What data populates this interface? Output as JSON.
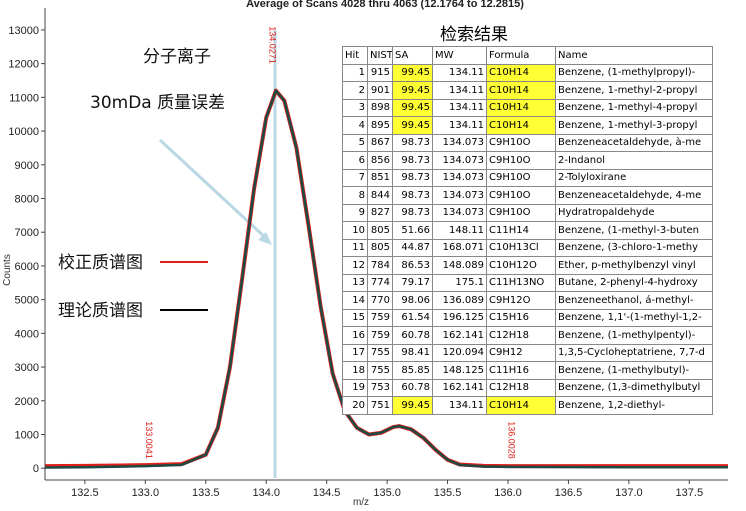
{
  "chart_data": {
    "type": "line",
    "title": "Average of Scans 4028 thru 4063 (12.1764 to 12.2815)",
    "x_label": "m/z",
    "y_label": "Counts",
    "xlim": [
      132.17,
      137.82
    ],
    "ylim": [
      -350,
      13650
    ],
    "xticks": [
      132.5,
      {
        "value": 133,
        "label": "133.0"
      },
      133.5,
      {
        "value": 134,
        "label": "134.0"
      },
      134.5,
      {
        "value": 135,
        "label": "135.0"
      },
      135.5,
      {
        "value": 136,
        "label": "136.0"
      },
      136.5,
      {
        "value": 137,
        "label": "137.0"
      },
      137.5
    ],
    "yticks": [
      0,
      1000,
      2000,
      3000,
      4000,
      5000,
      6000,
      7000,
      8000,
      9000,
      10000,
      11000,
      12000,
      13000
    ],
    "series": [
      {
        "name": "校正质谱图",
        "color": "#e0201b",
        "x": [
          132.17,
          132.5,
          133.0,
          133.3,
          133.5,
          133.6,
          133.7,
          133.8,
          133.9,
          134.0,
          134.08,
          134.15,
          134.25,
          134.35,
          134.45,
          134.55,
          134.65,
          134.75,
          134.85,
          134.95,
          135.05,
          135.1,
          135.2,
          135.3,
          135.4,
          135.5,
          135.6,
          135.8,
          136.0,
          137.0,
          137.82
        ],
        "values": [
          60,
          70,
          90,
          120,
          400,
          1200,
          3000,
          5600,
          8300,
          10400,
          11200,
          10900,
          9500,
          7200,
          4800,
          2800,
          1700,
          1200,
          1000,
          1050,
          1220,
          1250,
          1150,
          900,
          550,
          250,
          110,
          70,
          60,
          60,
          60
        ]
      },
      {
        "name": "理论质谱图",
        "color": "#1c4a44",
        "x": [
          132.17,
          132.5,
          133.0,
          133.3,
          133.5,
          133.6,
          133.7,
          133.8,
          133.9,
          134.0,
          134.08,
          134.15,
          134.25,
          134.35,
          134.45,
          134.55,
          134.65,
          134.75,
          134.85,
          134.95,
          135.05,
          135.1,
          135.2,
          135.3,
          135.4,
          135.5,
          135.6,
          135.8,
          136.0,
          137.0,
          137.82
        ],
        "values": [
          20,
          30,
          60,
          100,
          400,
          1200,
          3000,
          5600,
          8300,
          10400,
          11200,
          10900,
          9500,
          7200,
          4800,
          2800,
          1700,
          1200,
          1000,
          1050,
          1220,
          1250,
          1150,
          900,
          550,
          250,
          100,
          50,
          40,
          30,
          30
        ]
      }
    ],
    "peak_labels": [
      133.0041,
      134.0271,
      136.0028
    ],
    "peak_label_color": "#e0201b",
    "annotations": [
      "分子离子",
      "30mDa 质量误差"
    ]
  },
  "table": {
    "title": "检索结果",
    "header": [
      "Hit",
      "NIST",
      "SA",
      "MW",
      "Formula",
      "Name"
    ],
    "highlight_color": "#ffff33",
    "highlighted_hits": [
      1,
      2,
      3,
      4,
      20
    ],
    "rows": [
      [
        "1",
        "915",
        "99.45",
        "134.11",
        "C10H14",
        "Benzene, (1-methylpropyl)-"
      ],
      [
        "2",
        "901",
        "99.45",
        "134.11",
        "C10H14",
        "Benzene, 1-methyl-2-propyl"
      ],
      [
        "3",
        "898",
        "99.45",
        "134.11",
        "C10H14",
        "Benzene, 1-methyl-4-propyl"
      ],
      [
        "4",
        "895",
        "99.45",
        "134.11",
        "C10H14",
        "Benzene, 1-methyl-3-propyl"
      ],
      [
        "5",
        "867",
        "98.73",
        "134.073",
        "C9H10O",
        "Benzeneacetaldehyde, à-me"
      ],
      [
        "6",
        "856",
        "98.73",
        "134.073",
        "C9H10O",
        "2-Indanol"
      ],
      [
        "7",
        "851",
        "98.73",
        "134.073",
        "C9H10O",
        "2-Tolyloxirane"
      ],
      [
        "8",
        "844",
        "98.73",
        "134.073",
        "C9H10O",
        "Benzeneacetaldehyde, 4-me"
      ],
      [
        "9",
        "827",
        "98.73",
        "134.073",
        "C9H10O",
        "Hydratropaldehyde"
      ],
      [
        "10",
        "805",
        "51.66",
        "148.11",
        "C11H14",
        "Benzene, (1-methyl-3-buten"
      ],
      [
        "11",
        "805",
        "44.87",
        "168.071",
        "C10H13Cl",
        "Benzene, (3-chloro-1-methy"
      ],
      [
        "12",
        "784",
        "86.53",
        "148.089",
        "C10H12O",
        "Ether, p-methylbenzyl vinyl"
      ],
      [
        "13",
        "774",
        "79.17",
        "175.1",
        "C11H13NO",
        "Butane, 2-phenyl-4-hydroxy"
      ],
      [
        "14",
        "770",
        "98.06",
        "136.089",
        "C9H12O",
        "Benzeneethanol, á-methyl-"
      ],
      [
        "15",
        "759",
        "61.54",
        "196.125",
        "C15H16",
        "Benzene, 1,1'-(1-methyl-1,2-"
      ],
      [
        "16",
        "759",
        "60.78",
        "162.141",
        "C12H18",
        "Benzene, (1-methylpentyl)-"
      ],
      [
        "17",
        "755",
        "98.41",
        "120.094",
        "C9H12",
        "1,3,5-Cycloheptatriene, 7,7-d"
      ],
      [
        "18",
        "755",
        "85.85",
        "148.125",
        "C11H16",
        "Benzene, (1-methylbutyl)-"
      ],
      [
        "19",
        "753",
        "60.78",
        "162.141",
        "C12H18",
        "Benzene, (1,3-dimethylbutyl"
      ],
      [
        "20",
        "751",
        "99.45",
        "134.11",
        "C10H14",
        "Benzene, 1,2-diethyl-"
      ]
    ]
  }
}
